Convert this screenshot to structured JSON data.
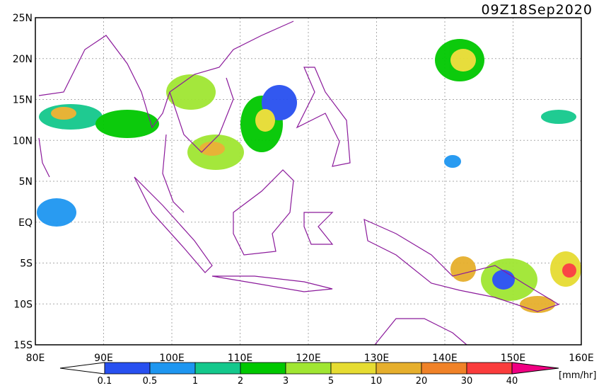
{
  "title": "09Z18Sep2020",
  "lat_labels": [
    "25N",
    "20N",
    "15N",
    "10N",
    "5N",
    "EQ",
    "5S",
    "10S",
    "15S"
  ],
  "lon_labels": [
    "80E",
    "90E",
    "100E",
    "110E",
    "120E",
    "130E",
    "140E",
    "150E",
    "160E"
  ],
  "colorbar": {
    "labels": [
      "0.1",
      "0.5",
      "1",
      "2",
      "3",
      "5",
      "10",
      "20",
      "30",
      "40"
    ],
    "colors": [
      "#2850f0",
      "#1e96f0",
      "#14c88c",
      "#00c800",
      "#a0e632",
      "#e6dc32",
      "#e6af2d",
      "#f08228",
      "#fa3c3c",
      "#f00082"
    ],
    "unit": "[mm/hr]"
  }
}
